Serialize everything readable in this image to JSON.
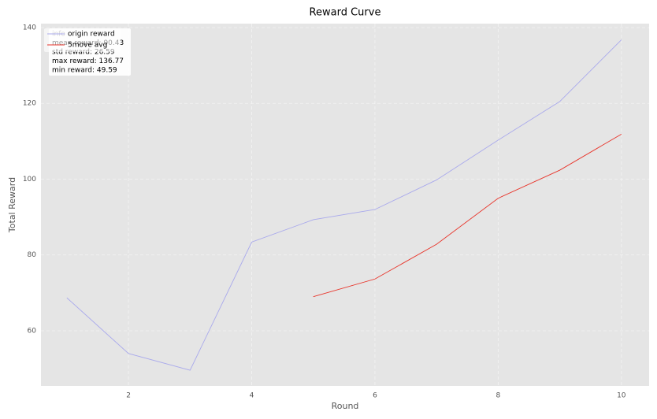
{
  "chart_data": {
    "type": "line",
    "title": "Reward Curve",
    "xlabel": "Round",
    "ylabel": "Total Reward",
    "x": [
      1,
      2,
      3,
      4,
      5,
      6,
      7,
      8,
      9,
      10
    ],
    "series": [
      {
        "name": "origin reward",
        "color": "#a9a9ec",
        "values": [
          68.7,
          54.0,
          49.59,
          83.4,
          89.3,
          92.0,
          99.8,
          110.3,
          120.5,
          136.77
        ]
      },
      {
        "name": "5move avg",
        "color": "#e8342a",
        "values": [
          null,
          null,
          null,
          null,
          69.0,
          73.66,
          82.82,
          94.96,
          102.38,
          111.87
        ]
      }
    ],
    "annotations": [
      "info",
      "mean reward: 90.43",
      "std reward: 26.59",
      "max reward: 136.77",
      "min reward: 49.59"
    ],
    "xlim": [
      0.58,
      10.45
    ],
    "xticks": [
      2,
      4,
      6,
      8,
      10
    ],
    "ylim": [
      45.45,
      141.04
    ],
    "yticks": [
      60,
      80,
      100,
      120,
      140
    ],
    "grid": true,
    "legend": "upper-left"
  }
}
